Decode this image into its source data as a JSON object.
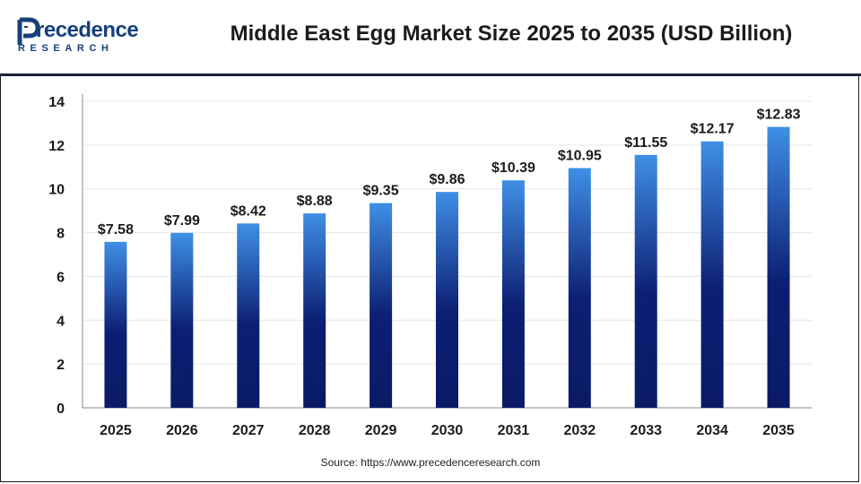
{
  "header": {
    "logo_word": "recedence",
    "logo_initial": "P",
    "logo_sub": "RESEARCH"
  },
  "chart_data": {
    "type": "bar",
    "title": "Middle East Egg Market Size 2025 to 2035 (USD Billion)",
    "categories": [
      "2025",
      "2026",
      "2027",
      "2028",
      "2029",
      "2030",
      "2031",
      "2032",
      "2033",
      "2034",
      "2035"
    ],
    "values": [
      7.58,
      7.99,
      8.42,
      8.88,
      9.35,
      9.86,
      10.39,
      10.95,
      11.55,
      12.17,
      12.83
    ],
    "data_labels": [
      "$7.58",
      "$7.99",
      "$8.42",
      "$8.88",
      "$9.35",
      "$9.86",
      "$10.39",
      "$10.95",
      "$11.55",
      "$12.17",
      "$12.83"
    ],
    "yticks": [
      0,
      2,
      4,
      6,
      8,
      10,
      12,
      14
    ],
    "ylim": [
      0,
      14
    ],
    "xlabel": "",
    "ylabel": "",
    "grid": true,
    "colors": {
      "bar_top": "#3f8fe6",
      "bar_bottom": "#0a1a66",
      "grid": "#e6e6e6",
      "axis": "#888888"
    }
  },
  "source": "Source: https://www.precedenceresearch.com"
}
